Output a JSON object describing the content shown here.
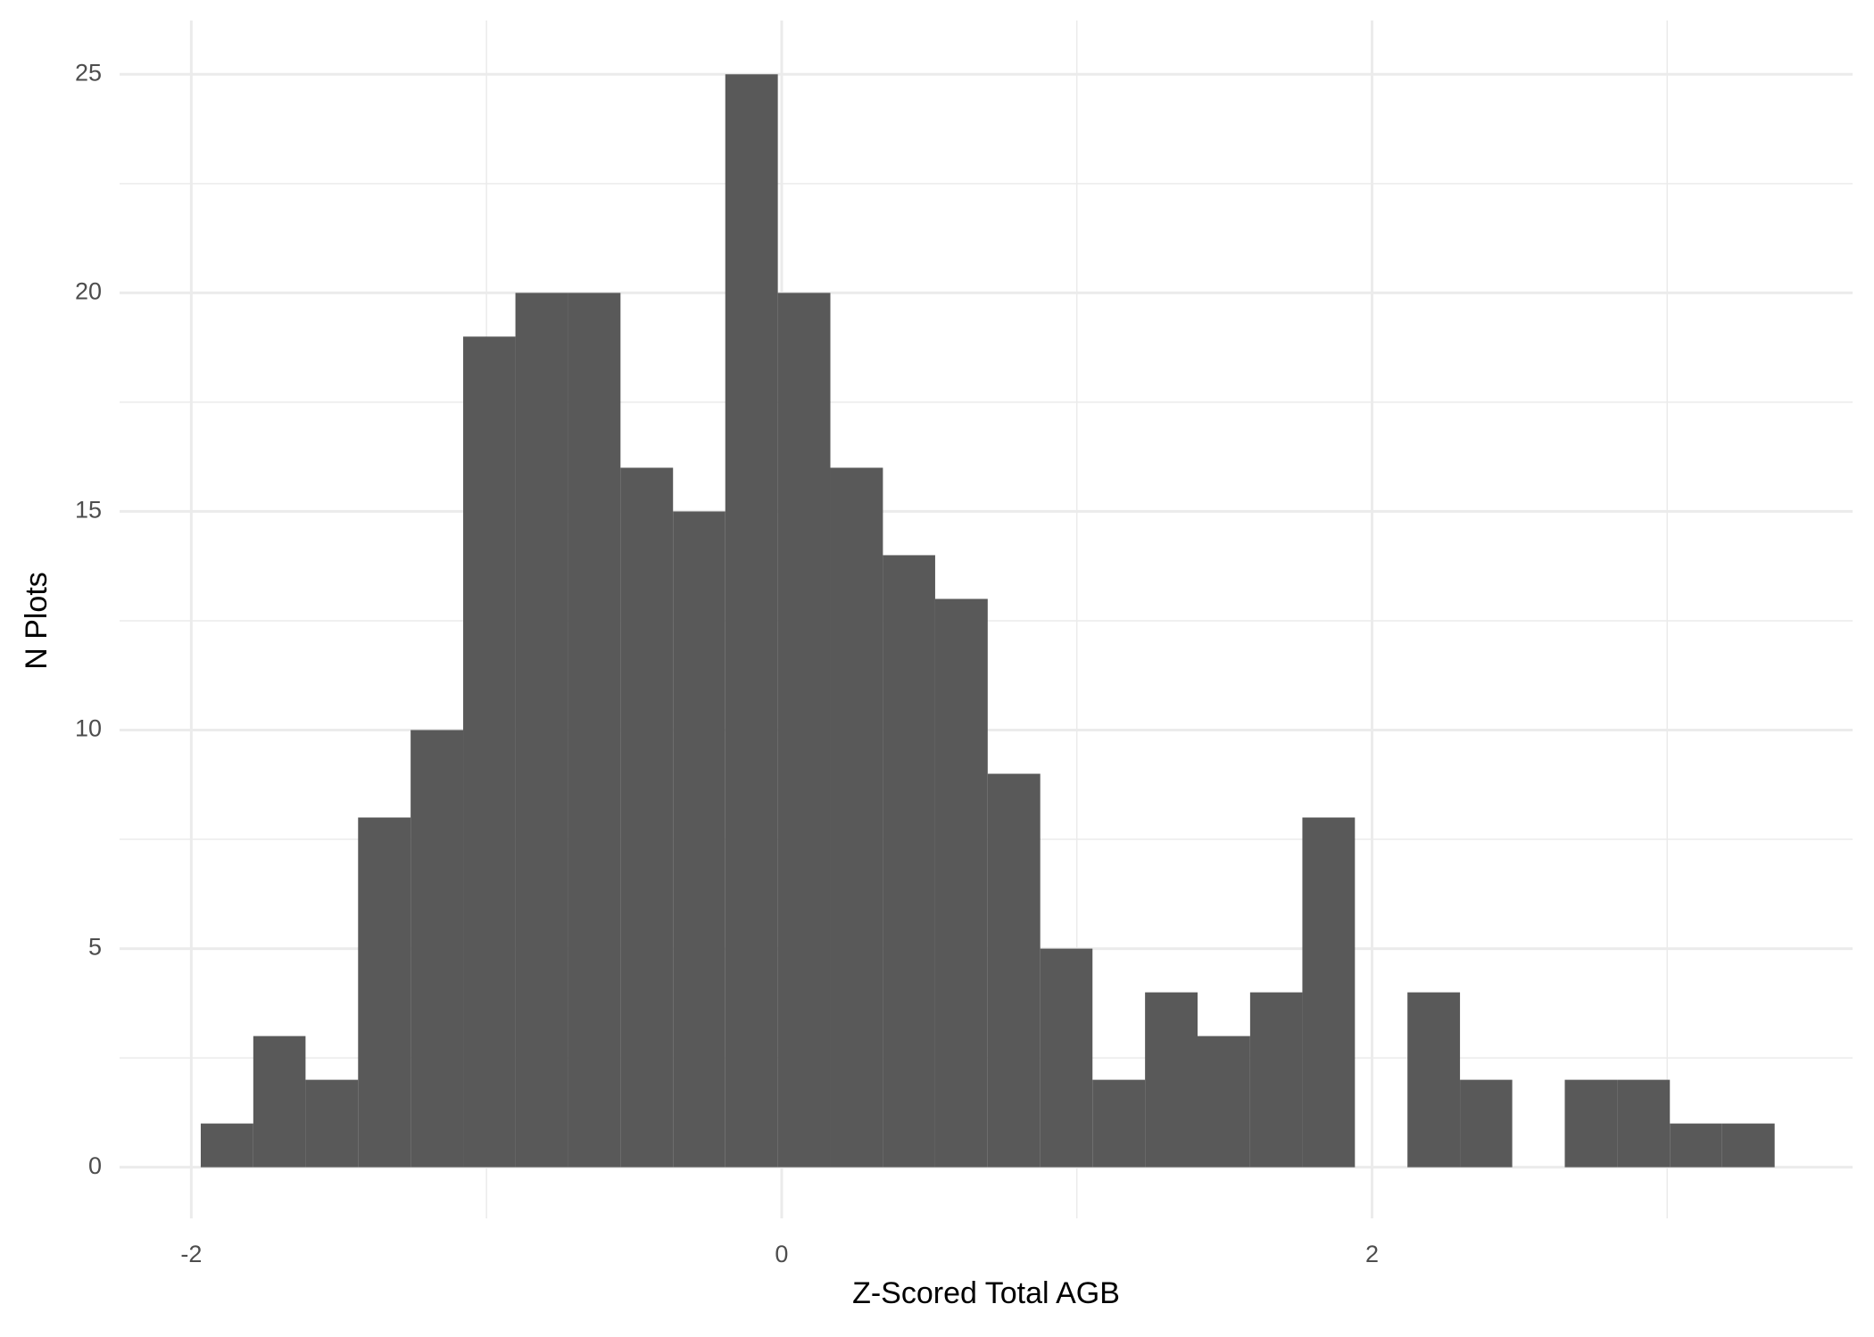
{
  "chart_data": {
    "type": "histogram",
    "x_label": "Z-Scored Total AGB",
    "y_label": "N Plots",
    "bins": [
      -1.968,
      -1.79,
      -1.613,
      -1.435,
      -1.257,
      -1.079,
      -0.902,
      -0.724,
      -0.546,
      -0.368,
      -0.191,
      -0.013,
      0.165,
      0.343,
      0.52,
      0.698,
      0.876,
      1.053,
      1.231,
      1.409,
      1.587,
      1.764,
      1.942,
      2.12,
      2.298,
      2.475,
      2.653,
      2.831,
      3.009,
      3.186,
      3.364
    ],
    "values": [
      1,
      3,
      2,
      8,
      10,
      19,
      20,
      20,
      16,
      15,
      25,
      20,
      16,
      14,
      13,
      9,
      5,
      2,
      4,
      3,
      4,
      8,
      0,
      4,
      2,
      0,
      2,
      2,
      1,
      1
    ],
    "color": "#595959",
    "xlim": [
      -2.243,
      3.628
    ],
    "xticks": [
      -2,
      0,
      2
    ],
    "ylim": [
      -1.17,
      26.23
    ],
    "yticks": [
      0,
      5,
      10,
      15,
      20,
      25
    ],
    "grid": true,
    "minor_grid": true
  }
}
